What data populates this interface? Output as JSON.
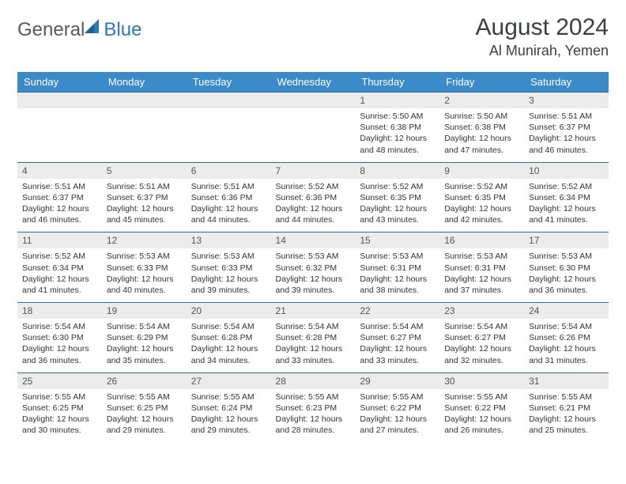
{
  "brand": {
    "part1": "General",
    "part2": "Blue"
  },
  "title": "August 2024",
  "location": "Al Munirah, Yemen",
  "colors": {
    "header_bg": "#3b8bca",
    "header_fg": "#ffffff",
    "row_divider": "#2e6ea6",
    "daynum_bg": "#ececec",
    "brand_gray": "#555a5e",
    "brand_blue": "#2a78bd",
    "page_bg": "#ffffff"
  },
  "fonts": {
    "base_family": "Arial, Helvetica, sans-serif",
    "month_title_pt": 30,
    "location_pt": 18,
    "weekday_pt": 13,
    "daynum_pt": 12,
    "body_pt": 10.5
  },
  "weekdays": [
    "Sunday",
    "Monday",
    "Tuesday",
    "Wednesday",
    "Thursday",
    "Friday",
    "Saturday"
  ],
  "weeks": [
    [
      {
        "n": "",
        "sr": "",
        "ss": "",
        "dl": ""
      },
      {
        "n": "",
        "sr": "",
        "ss": "",
        "dl": ""
      },
      {
        "n": "",
        "sr": "",
        "ss": "",
        "dl": ""
      },
      {
        "n": "",
        "sr": "",
        "ss": "",
        "dl": ""
      },
      {
        "n": "1",
        "sr": "Sunrise: 5:50 AM",
        "ss": "Sunset: 6:38 PM",
        "dl": "Daylight: 12 hours and 48 minutes."
      },
      {
        "n": "2",
        "sr": "Sunrise: 5:50 AM",
        "ss": "Sunset: 6:38 PM",
        "dl": "Daylight: 12 hours and 47 minutes."
      },
      {
        "n": "3",
        "sr": "Sunrise: 5:51 AM",
        "ss": "Sunset: 6:37 PM",
        "dl": "Daylight: 12 hours and 46 minutes."
      }
    ],
    [
      {
        "n": "4",
        "sr": "Sunrise: 5:51 AM",
        "ss": "Sunset: 6:37 PM",
        "dl": "Daylight: 12 hours and 46 minutes."
      },
      {
        "n": "5",
        "sr": "Sunrise: 5:51 AM",
        "ss": "Sunset: 6:37 PM",
        "dl": "Daylight: 12 hours and 45 minutes."
      },
      {
        "n": "6",
        "sr": "Sunrise: 5:51 AM",
        "ss": "Sunset: 6:36 PM",
        "dl": "Daylight: 12 hours and 44 minutes."
      },
      {
        "n": "7",
        "sr": "Sunrise: 5:52 AM",
        "ss": "Sunset: 6:36 PM",
        "dl": "Daylight: 12 hours and 44 minutes."
      },
      {
        "n": "8",
        "sr": "Sunrise: 5:52 AM",
        "ss": "Sunset: 6:35 PM",
        "dl": "Daylight: 12 hours and 43 minutes."
      },
      {
        "n": "9",
        "sr": "Sunrise: 5:52 AM",
        "ss": "Sunset: 6:35 PM",
        "dl": "Daylight: 12 hours and 42 minutes."
      },
      {
        "n": "10",
        "sr": "Sunrise: 5:52 AM",
        "ss": "Sunset: 6:34 PM",
        "dl": "Daylight: 12 hours and 41 minutes."
      }
    ],
    [
      {
        "n": "11",
        "sr": "Sunrise: 5:52 AM",
        "ss": "Sunset: 6:34 PM",
        "dl": "Daylight: 12 hours and 41 minutes."
      },
      {
        "n": "12",
        "sr": "Sunrise: 5:53 AM",
        "ss": "Sunset: 6:33 PM",
        "dl": "Daylight: 12 hours and 40 minutes."
      },
      {
        "n": "13",
        "sr": "Sunrise: 5:53 AM",
        "ss": "Sunset: 6:33 PM",
        "dl": "Daylight: 12 hours and 39 minutes."
      },
      {
        "n": "14",
        "sr": "Sunrise: 5:53 AM",
        "ss": "Sunset: 6:32 PM",
        "dl": "Daylight: 12 hours and 39 minutes."
      },
      {
        "n": "15",
        "sr": "Sunrise: 5:53 AM",
        "ss": "Sunset: 6:31 PM",
        "dl": "Daylight: 12 hours and 38 minutes."
      },
      {
        "n": "16",
        "sr": "Sunrise: 5:53 AM",
        "ss": "Sunset: 6:31 PM",
        "dl": "Daylight: 12 hours and 37 minutes."
      },
      {
        "n": "17",
        "sr": "Sunrise: 5:53 AM",
        "ss": "Sunset: 6:30 PM",
        "dl": "Daylight: 12 hours and 36 minutes."
      }
    ],
    [
      {
        "n": "18",
        "sr": "Sunrise: 5:54 AM",
        "ss": "Sunset: 6:30 PM",
        "dl": "Daylight: 12 hours and 36 minutes."
      },
      {
        "n": "19",
        "sr": "Sunrise: 5:54 AM",
        "ss": "Sunset: 6:29 PM",
        "dl": "Daylight: 12 hours and 35 minutes."
      },
      {
        "n": "20",
        "sr": "Sunrise: 5:54 AM",
        "ss": "Sunset: 6:28 PM",
        "dl": "Daylight: 12 hours and 34 minutes."
      },
      {
        "n": "21",
        "sr": "Sunrise: 5:54 AM",
        "ss": "Sunset: 6:28 PM",
        "dl": "Daylight: 12 hours and 33 minutes."
      },
      {
        "n": "22",
        "sr": "Sunrise: 5:54 AM",
        "ss": "Sunset: 6:27 PM",
        "dl": "Daylight: 12 hours and 33 minutes."
      },
      {
        "n": "23",
        "sr": "Sunrise: 5:54 AM",
        "ss": "Sunset: 6:27 PM",
        "dl": "Daylight: 12 hours and 32 minutes."
      },
      {
        "n": "24",
        "sr": "Sunrise: 5:54 AM",
        "ss": "Sunset: 6:26 PM",
        "dl": "Daylight: 12 hours and 31 minutes."
      }
    ],
    [
      {
        "n": "25",
        "sr": "Sunrise: 5:55 AM",
        "ss": "Sunset: 6:25 PM",
        "dl": "Daylight: 12 hours and 30 minutes."
      },
      {
        "n": "26",
        "sr": "Sunrise: 5:55 AM",
        "ss": "Sunset: 6:25 PM",
        "dl": "Daylight: 12 hours and 29 minutes."
      },
      {
        "n": "27",
        "sr": "Sunrise: 5:55 AM",
        "ss": "Sunset: 6:24 PM",
        "dl": "Daylight: 12 hours and 29 minutes."
      },
      {
        "n": "28",
        "sr": "Sunrise: 5:55 AM",
        "ss": "Sunset: 6:23 PM",
        "dl": "Daylight: 12 hours and 28 minutes."
      },
      {
        "n": "29",
        "sr": "Sunrise: 5:55 AM",
        "ss": "Sunset: 6:22 PM",
        "dl": "Daylight: 12 hours and 27 minutes."
      },
      {
        "n": "30",
        "sr": "Sunrise: 5:55 AM",
        "ss": "Sunset: 6:22 PM",
        "dl": "Daylight: 12 hours and 26 minutes."
      },
      {
        "n": "31",
        "sr": "Sunrise: 5:55 AM",
        "ss": "Sunset: 6:21 PM",
        "dl": "Daylight: 12 hours and 25 minutes."
      }
    ]
  ]
}
